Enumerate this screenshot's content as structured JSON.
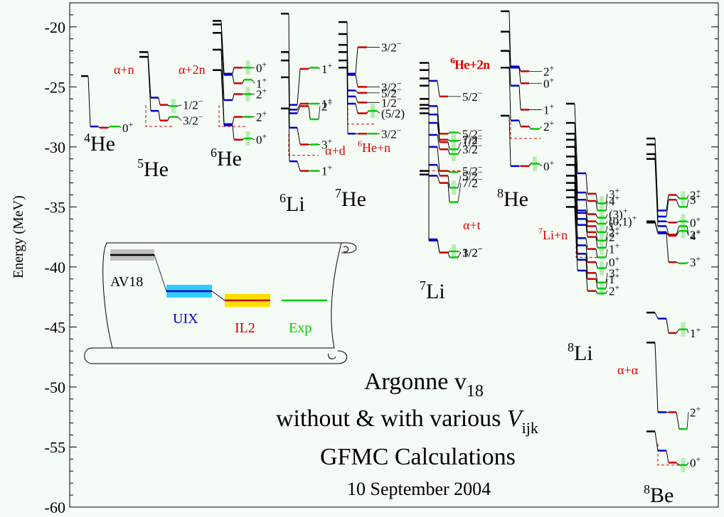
{
  "chart_data": {
    "type": "level-diagram",
    "title_lines": [
      "Argonne v18",
      "without & with various V",
      "GFMC Calculations",
      "10 September 2004"
    ],
    "title_symbols": {
      "v_subscript": "18",
      "V_letter": "V",
      "V_subscript": "ijk"
    },
    "ylabel": "Energy (MeV)",
    "ylim": [
      -60,
      -18
    ],
    "yticks": [
      -20,
      -25,
      -30,
      -35,
      -40,
      -45,
      -50,
      -55,
      -60
    ],
    "colors": {
      "AV18": "#000000",
      "UIX": "#0000cc",
      "IL2": "#cc0000",
      "Exp": "#00cc00",
      "threshold": "#dd0000",
      "uix_band": "#33ccff",
      "il2_band": "#ffe000",
      "exp_band": "#a9e8a9",
      "av18_band": "#c0c0c0"
    },
    "legend": {
      "AV18": "AV18",
      "UIX": "UIX",
      "IL2": "IL2",
      "Exp": "Exp"
    },
    "nuclei": [
      {
        "mass": "4",
        "sym": "He",
        "levels": [
          {
            "av18": -24.1,
            "uix": -28.3,
            "il2": -28.4,
            "exp": -28.3,
            "label": "0",
            "parity": "+"
          }
        ]
      },
      {
        "mass": "5",
        "sym": "He",
        "threshold": {
          "label": "α+n",
          "energy": -28.3
        },
        "levels": [
          {
            "av18": -22.1,
            "uix": -25.9,
            "il2": -26.5,
            "exp": -26.6,
            "label": "1/2",
            "parity": "−"
          },
          {
            "av18": -22.5,
            "uix": -27.0,
            "il2": -27.8,
            "exp": -27.5,
            "label": "3/2",
            "parity": "−"
          }
        ]
      },
      {
        "mass": "6",
        "sym": "He",
        "threshold": {
          "label": "α+2n",
          "energy": -28.3
        },
        "levels": [
          {
            "av18": -19.5,
            "uix": -23.9,
            "il2": -23.4,
            "exp": -23.4,
            "label": "0",
            "parity": "+"
          },
          {
            "av18": -19.8,
            "uix": -24.0,
            "il2": -24.7,
            "exp": -24.4,
            "label": "1",
            "parity": "+"
          },
          {
            "av18": -20.5,
            "uix": -26.1,
            "il2": -25.6,
            "exp": -25.6,
            "label": "2",
            "parity": "+"
          },
          {
            "av18": -21.9,
            "uix": -28.1,
            "il2": -27.5,
            "exp": -27.5,
            "label": "2",
            "parity": "+"
          },
          {
            "av18": -23.6,
            "uix": -28.2,
            "il2": -29.4,
            "exp": -29.3,
            "label": "0",
            "parity": "+"
          }
        ]
      },
      {
        "mass": "6",
        "sym": "Li",
        "threshold": {
          "label": "α+d",
          "energy": -30.7
        },
        "levels": [
          {
            "av18": -18.9,
            "uix": -26.5,
            "il2": -23.5,
            "exp": -23.4,
            "label": "1",
            "parity": "+"
          },
          {
            "av18": -22.1,
            "uix": -26.9,
            "il2": -26.4,
            "exp": -26.4,
            "label": "1",
            "parity": "+"
          },
          {
            "av18": -22.8,
            "uix": -27.2,
            "il2": -26.6,
            "exp": -27.7,
            "label": "2",
            "parity": "+"
          },
          {
            "av18": -24.2,
            "uix": -28.4,
            "il2": -29.8,
            "exp": -29.8,
            "label": "3",
            "parity": "+"
          },
          {
            "av18": -26.8,
            "uix": -31.2,
            "il2": -32.0,
            "exp": -32.0,
            "label": "1",
            "parity": "+"
          }
        ]
      },
      {
        "mass": "7",
        "sym": "He",
        "threshold": {
          "label": "6He+n",
          "energy": -28.1
        },
        "levels": [
          {
            "av18": -19.6,
            "uix": -23.9,
            "il2": -21.7,
            "exp": null,
            "label": "3/2",
            "parity": "−"
          },
          {
            "av18": -20.6,
            "uix": -24.0,
            "il2": -25.0,
            "exp": null,
            "label": "3/2",
            "parity": "−"
          },
          {
            "av18": -21.5,
            "uix": -25.3,
            "il2": -25.5,
            "exp": null,
            "label": "5/2",
            "parity": "−"
          },
          {
            "av18": -22.1,
            "uix": -25.8,
            "il2": -26.3,
            "exp": null,
            "label": "1/2",
            "parity": "−"
          },
          {
            "av18": -22.8,
            "uix": -26.4,
            "il2": -27.2,
            "exp": -27.0,
            "label": "(5/2)",
            "parity": ""
          },
          {
            "av18": -23.4,
            "uix": -28.9,
            "il2": -28.9,
            "exp": -28.9,
            "label": "3/2",
            "parity": "−"
          }
        ]
      },
      {
        "mass": "7",
        "sym": "Li",
        "threshold": {
          "label": "α+t",
          "energy": -32.0
        },
        "extra_threshold": {
          "label": "6He+2n",
          "energy": -26.0
        },
        "levels": [
          {
            "av18": -23.0,
            "uix": -24.5,
            "il2": -25.8,
            "exp": null,
            "label": "5/2",
            "parity": "−"
          },
          {
            "av18": -23.6,
            "uix": -26.6,
            "il2": -28.9,
            "exp": -28.8,
            "label": "5/2",
            "parity": "−"
          },
          {
            "av18": -24.3,
            "uix": -27.3,
            "il2": -29.4,
            "exp": -29.5,
            "label": "7/2",
            "parity": "−"
          },
          {
            "av18": -24.9,
            "uix": -28.0,
            "il2": -29.6,
            "exp": -30.2,
            "label": "1/2",
            "parity": "−"
          },
          {
            "av18": -26.0,
            "uix": -29.0,
            "il2": -30.2,
            "exp": -30.6,
            "label": "3/2",
            "parity": "−"
          },
          {
            "av18": -26.5,
            "uix": -30.0,
            "il2": -32.0,
            "exp": -32.1,
            "label": "5/2",
            "parity": "−"
          },
          {
            "av18": -26.8,
            "uix": -31.5,
            "il2": -32.4,
            "exp": -33.4,
            "label": "5/2",
            "parity": "−"
          },
          {
            "av18": -27.2,
            "uix": -32.4,
            "il2": -33.0,
            "exp": -34.6,
            "label": "7/2",
            "parity": "−"
          },
          {
            "av18": -32.0,
            "uix": -37.7,
            "il2": -38.8,
            "exp": -38.7,
            "label": "1/2",
            "parity": "−"
          },
          {
            "av18": -32.3,
            "uix": -37.8,
            "il2": -38.8,
            "exp": -39.2,
            "label": "3/2",
            "parity": "−"
          }
        ]
      },
      {
        "mass": "8",
        "sym": "He",
        "threshold": {
          "label": "6He+2n",
          "energy": -29.3
        },
        "levels": [
          {
            "av18": -18.7,
            "uix": -23.3,
            "il2": -23.7,
            "exp": null,
            "label": "2",
            "parity": "+"
          },
          {
            "av18": -20.4,
            "uix": -23.4,
            "il2": -24.7,
            "exp": null,
            "label": "0",
            "parity": "+"
          },
          {
            "av18": -22.0,
            "uix": -24.9,
            "il2": -26.9,
            "exp": null,
            "label": "1",
            "parity": "+"
          },
          {
            "av18": -23.4,
            "uix": -27.8,
            "il2": -28.3,
            "exp": -28.5,
            "label": "2",
            "parity": "+"
          },
          {
            "av18": -27.4,
            "uix": -31.6,
            "il2": -31.6,
            "exp": -31.4,
            "label": "0",
            "parity": "+"
          }
        ]
      },
      {
        "mass": "8",
        "sym": "Li",
        "threshold": {
          "label": "7Li+n",
          "energy": -39.2
        },
        "levels": [
          {
            "av18": -26.4,
            "uix": -32.2,
            "il2": -33.9,
            "exp": -34.7,
            "label": "3",
            "parity": "+"
          },
          {
            "av18": -28.0,
            "uix": -33.8,
            "il2": -34.5,
            "exp": -35.3,
            "label": "4",
            "parity": "+"
          },
          {
            "av18": -28.9,
            "uix": -34.4,
            "il2": -35.6,
            "exp": -35.9,
            "label": "(3)",
            "parity": "+"
          },
          {
            "av18": -29.4,
            "uix": -35.3,
            "il2": -36.2,
            "exp": -36.4,
            "label": "(0,1)",
            "parity": "+"
          },
          {
            "av18": -30.0,
            "uix": -35.5,
            "il2": -36.6,
            "exp": -37.1,
            "label": "1",
            "parity": "+"
          },
          {
            "av18": -30.8,
            "uix": -36.0,
            "il2": -37.1,
            "exp": -37.8,
            "label": "2",
            "parity": "+"
          },
          {
            "av18": -31.5,
            "uix": -36.5,
            "il2": -37.5,
            "exp": -38.4,
            "label": "2",
            "parity": "+"
          },
          {
            "av18": -32.4,
            "uix": -37.6,
            "il2": -38.5,
            "exp": -39.2,
            "label": "1",
            "parity": "+"
          },
          {
            "av18": -33.0,
            "uix": -38.2,
            "il2": -39.6,
            "exp": -40.1,
            "label": "0",
            "parity": "+"
          },
          {
            "av18": -33.6,
            "uix": -38.9,
            "il2": -40.5,
            "exp": -41.3,
            "label": "3",
            "parity": "+"
          },
          {
            "av18": -34.2,
            "uix": -39.4,
            "il2": -41.0,
            "exp": -41.8,
            "label": "1",
            "parity": "+"
          },
          {
            "av18": -35.0,
            "uix": -40.3,
            "il2": -42.0,
            "exp": -42.2,
            "label": "2",
            "parity": "+"
          }
        ]
      },
      {
        "mass": "8",
        "sym": "Be",
        "threshold": {
          "label": "α+α",
          "energy": -56.5
        },
        "levels": [
          {
            "av18": -29.3,
            "uix": -35.3,
            "il2": -34.0,
            "exp": -34.3,
            "label": "2",
            "parity": "+"
          },
          {
            "av18": -29.8,
            "uix": -35.8,
            "il2": -34.4,
            "exp": -35.0,
            "label": "3",
            "parity": "+"
          },
          {
            "av18": -30.6,
            "uix": -36.2,
            "il2": -36.3,
            "exp": -36.2,
            "label": "0",
            "parity": "+"
          },
          {
            "av18": -31.0,
            "uix": -36.6,
            "il2": -37.3,
            "exp": -36.6,
            "label": "2",
            "parity": "+"
          },
          {
            "av18": -36.2,
            "uix": -37.1,
            "il2": -37.4,
            "exp": -37.0,
            "label": "4",
            "parity": "+"
          },
          {
            "av18": -36.3,
            "uix": -37.2,
            "il2": -39.6,
            "exp": -39.7,
            "label": "3",
            "parity": "+"
          },
          {
            "av18": -43.8,
            "uix": -44.3,
            "il2": -45.5,
            "exp": -45.2,
            "label": "1",
            "parity": "+"
          },
          {
            "av18": -46.3,
            "uix": -52.1,
            "il2": -52.1,
            "exp": -53.5,
            "label": "2",
            "parity": "+"
          },
          {
            "av18": -53.7,
            "uix": -55.3,
            "il2": -56.3,
            "exp": -56.5,
            "label": "0",
            "parity": "+"
          }
        ]
      }
    ]
  }
}
